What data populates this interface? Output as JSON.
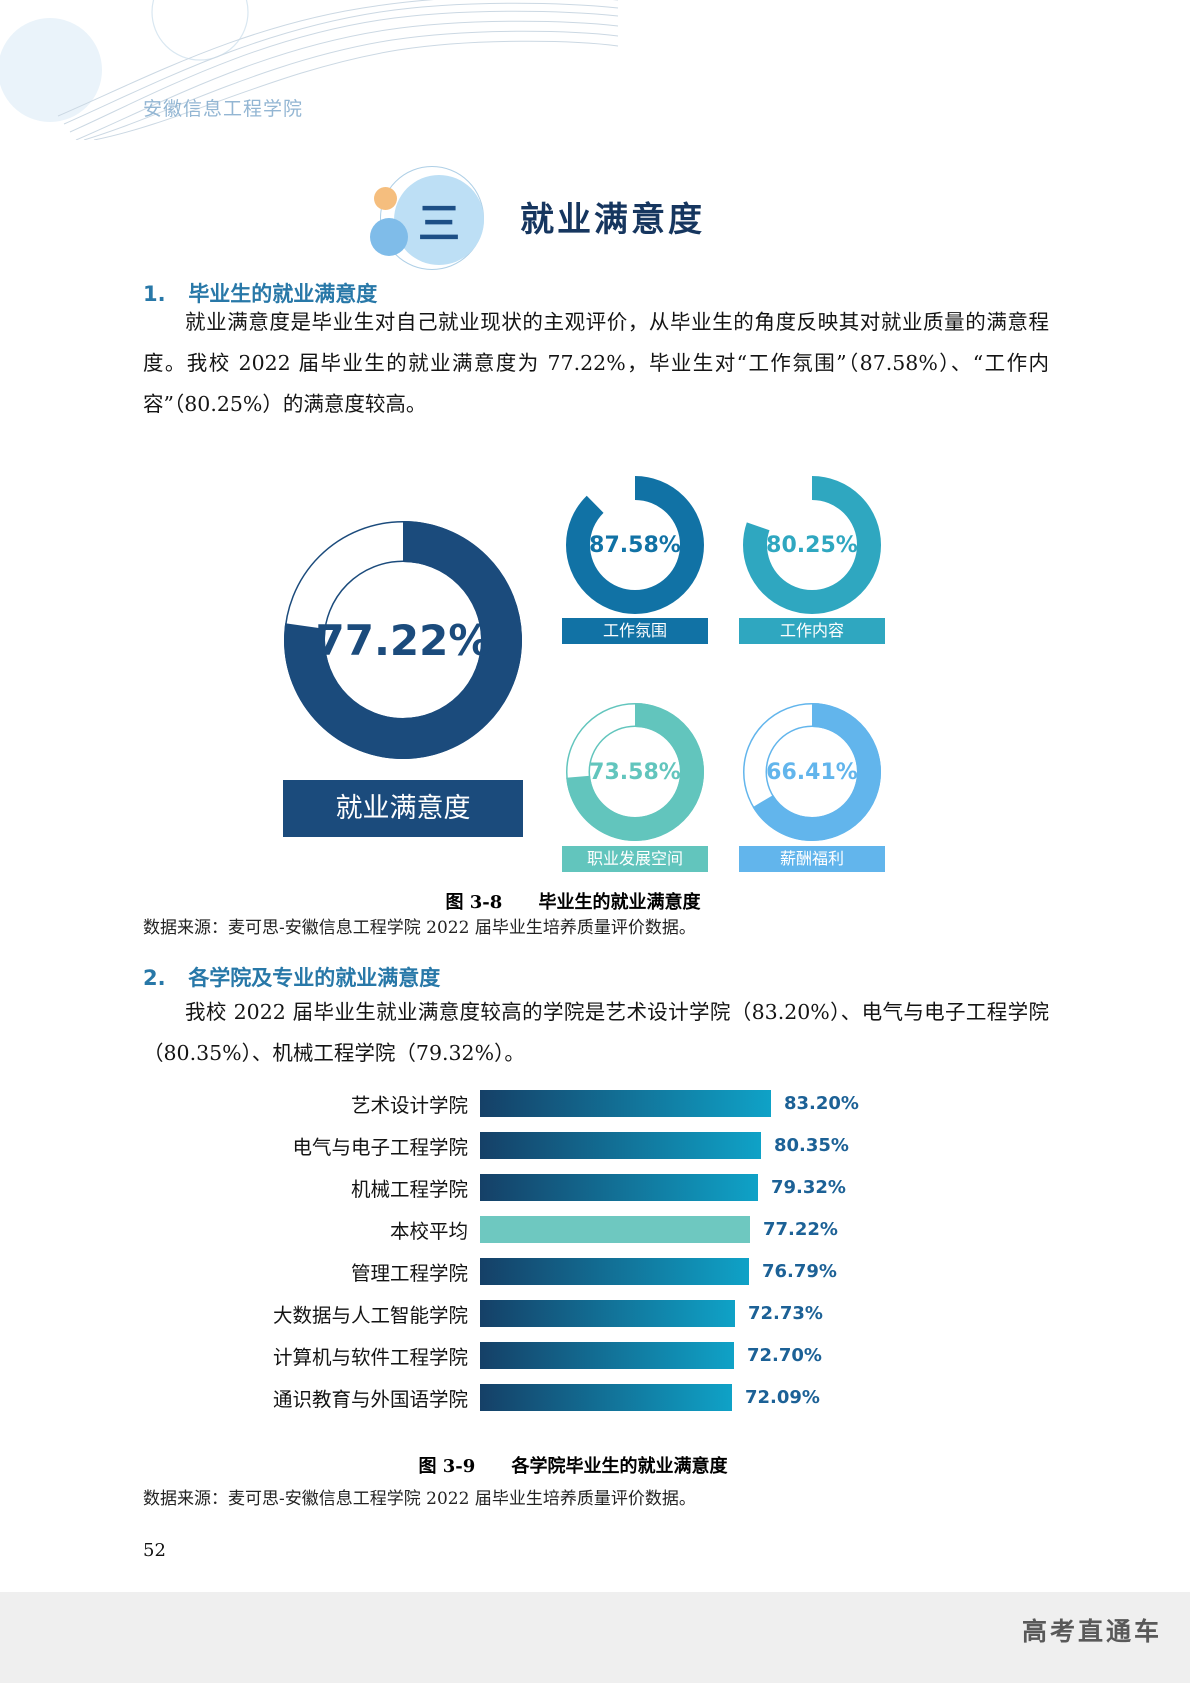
{
  "page": {
    "header": "安徽信息工程学院",
    "page_number": "52",
    "watermark": "高考直通车"
  },
  "title": {
    "badge": "三",
    "text": "就业满意度"
  },
  "section1": {
    "number": "1.",
    "heading": "毕业生的就业满意度",
    "paragraph": "就业满意度是毕业生对自己就业现状的主观评价，从毕业生的角度反映其对就业质量的满意程度。我校 2022 届毕业生的就业满意度为 77.22%，毕业生对“工作氛围”（87.58%）、“工作内容”（80.25%）的满意度较高。",
    "figure": {
      "label": "图 3-8",
      "title": "毕业生的就业满意度"
    },
    "source": "数据来源：麦可思-安徽信息工程学院 2022 届毕业生培养质量评价数据。"
  },
  "section2": {
    "number": "2.",
    "heading": "各学院及专业的就业满意度",
    "paragraph": "我校 2022 届毕业生就业满意度较高的学院是艺术设计学院（83.20%）、电气与电子工程学院（80.35%）、机械工程学院（79.32%）。",
    "figure": {
      "label": "图 3-9",
      "title": "各学院毕业生的就业满意度"
    },
    "source": "数据来源：麦可思-安徽信息工程学院 2022 届毕业生培养质量评价数据。"
  },
  "chart_data": [
    {
      "type": "pie",
      "variant": "donut-grid",
      "title": "毕业生的就业满意度",
      "donuts": [
        {
          "label": "就业满意度",
          "value": 77.22,
          "display": "77.22%",
          "color": "#1B4B7C",
          "size": "large",
          "outlined": true
        },
        {
          "label": "工作氛围",
          "value": 87.58,
          "display": "87.58%",
          "color": "#1172A5",
          "outlined": false
        },
        {
          "label": "工作内容",
          "value": 80.25,
          "display": "80.25%",
          "color": "#2FA7C0",
          "outlined": false
        },
        {
          "label": "职业发展空间",
          "value": 73.58,
          "display": "73.58%",
          "color": "#62C5BD",
          "outlined": true
        },
        {
          "label": "薪酬福利",
          "value": 66.41,
          "display": "66.41%",
          "color": "#62B5EC",
          "outlined": true
        }
      ]
    },
    {
      "type": "bar",
      "orientation": "horizontal",
      "title": "各学院毕业生的就业满意度",
      "categories": [
        "艺术设计学院",
        "电气与电子工程学院",
        "机械工程学院",
        "本校平均",
        "管理工程学院",
        "大数据与人工智能学院",
        "计算机与软件工程学院",
        "通识教育与外国语学院"
      ],
      "values": [
        83.2,
        80.35,
        79.32,
        77.22,
        76.79,
        72.73,
        72.7,
        72.09
      ],
      "value_labels": [
        "83.20%",
        "80.35%",
        "79.32%",
        "77.22%",
        "76.79%",
        "72.73%",
        "72.70%",
        "72.09%"
      ],
      "xlim": [
        0,
        86
      ],
      "highlight_index": 3,
      "colors": {
        "bar_gradient_start": "#154067",
        "bar_gradient_end": "#0FA2C7",
        "highlight": "#6EC8C0",
        "value_text": "#1C6196"
      }
    }
  ]
}
